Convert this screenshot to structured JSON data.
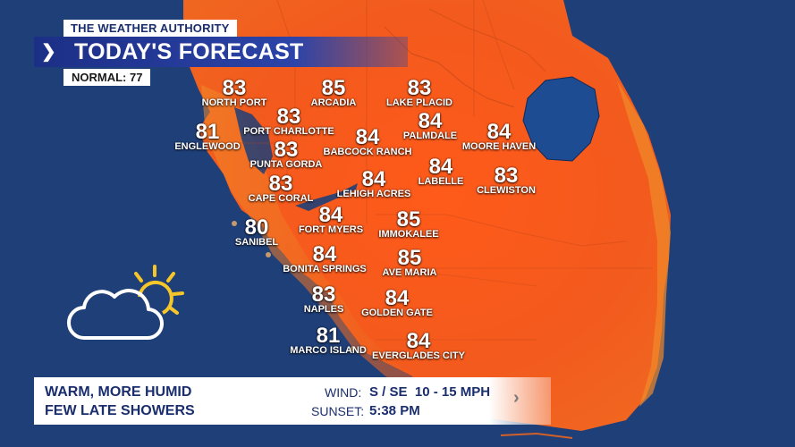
{
  "header": {
    "brand": "THE WEATHER AUTHORITY",
    "chevron": "❯",
    "title": "TODAY'S FORECAST",
    "normal": "NORMAL: 77"
  },
  "cities": [
    {
      "temp": "83",
      "name": "NORTH PORT"
    },
    {
      "temp": "85",
      "name": "ARCADIA"
    },
    {
      "temp": "83",
      "name": "LAKE PLACID"
    },
    {
      "temp": "83",
      "name": "PORT CHARLOTTE"
    },
    {
      "temp": "84",
      "name": "PALMDALE"
    },
    {
      "temp": "84",
      "name": "MOORE HAVEN"
    },
    {
      "temp": "81",
      "name": "ENGLEWOOD"
    },
    {
      "temp": "83",
      "name": "PUNTA GORDA"
    },
    {
      "temp": "84",
      "name": "BABCOCK RANCH"
    },
    {
      "temp": "84",
      "name": "LABELLE"
    },
    {
      "temp": "83",
      "name": "CLEWISTON"
    },
    {
      "temp": "83",
      "name": "CAPE CORAL"
    },
    {
      "temp": "84",
      "name": "LEHIGH ACRES"
    },
    {
      "temp": "80",
      "name": "SANIBEL"
    },
    {
      "temp": "84",
      "name": "FORT MYERS"
    },
    {
      "temp": "85",
      "name": "IMMOKALEE"
    },
    {
      "temp": "84",
      "name": "BONITA SPRINGS"
    },
    {
      "temp": "85",
      "name": "AVE MARIA"
    },
    {
      "temp": "83",
      "name": "NAPLES"
    },
    {
      "temp": "84",
      "name": "GOLDEN GATE"
    },
    {
      "temp": "81",
      "name": "MARCO ISLAND"
    },
    {
      "temp": "84",
      "name": "EVERGLADES CITY"
    }
  ],
  "conditions_icon": "partly-cloudy-icon",
  "footer": {
    "line1": "WARM, MORE HUMID",
    "line2": "FEW LATE SHOWERS",
    "wind_label": "WIND:",
    "wind_value": "S / SE  10 - 15 MPH",
    "sunset_label": "SUNSET:",
    "sunset_value": "5:38 PM",
    "chevron": "›"
  },
  "colors": {
    "ocean": "#1f3f78",
    "land_orange": "#ee5a1c",
    "land_warm": "#f08a2a",
    "lake": "#1e4c93",
    "banner_blue": "#1c2f86",
    "text_navy": "#1a2e6e"
  }
}
